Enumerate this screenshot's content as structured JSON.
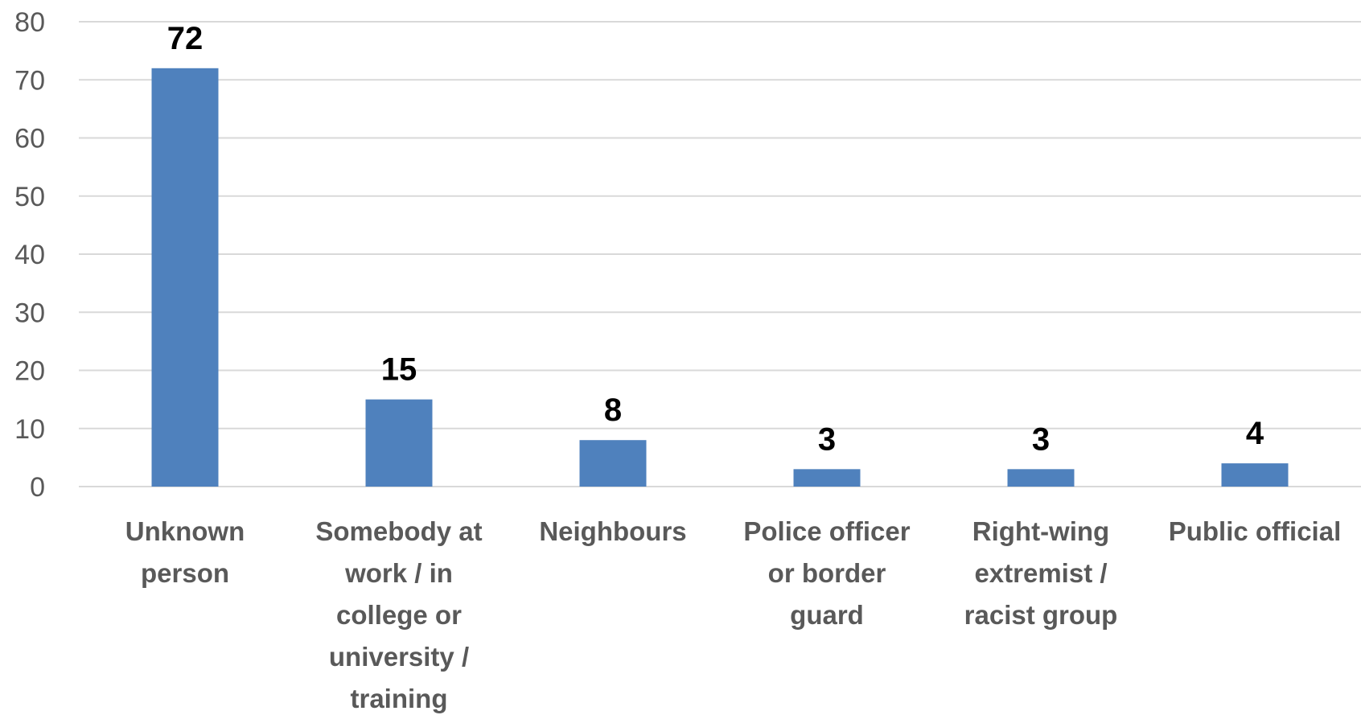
{
  "chart_data": {
    "type": "bar",
    "categories": [
      [
        "Unknown",
        "person"
      ],
      [
        "Somebody at",
        "work / in",
        "college or",
        "university /",
        "training"
      ],
      [
        "Neighbours"
      ],
      [
        "Police officer",
        "or border",
        "guard"
      ],
      [
        "Right-wing",
        "extremist /",
        "racist group"
      ],
      [
        "Public official"
      ]
    ],
    "values": [
      72,
      15,
      8,
      3,
      3,
      4
    ],
    "data_labels": [
      "72",
      "15",
      "8",
      "3",
      "3",
      "4"
    ],
    "yticks": [
      "0",
      "10",
      "20",
      "30",
      "40",
      "50",
      "60",
      "70",
      "80"
    ],
    "ylim": [
      0,
      80
    ],
    "title": "",
    "xlabel": "",
    "ylabel": "",
    "grid": true,
    "legend": "none",
    "bar_color": "#4f81bd"
  }
}
